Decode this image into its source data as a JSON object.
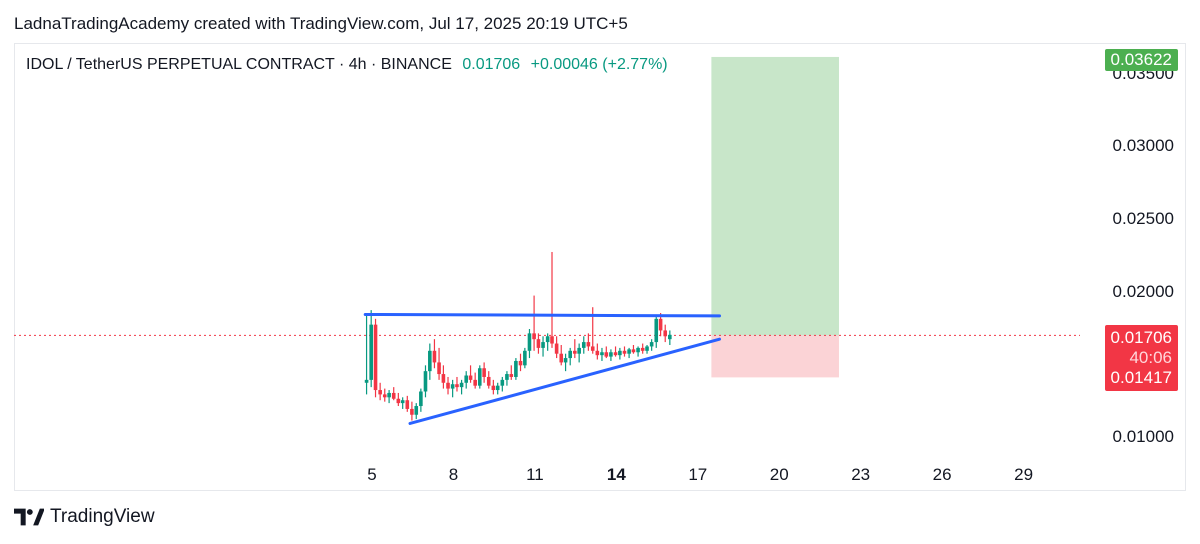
{
  "header": {
    "attribution": "LadnaTradingAcademy created with TradingView.com, Jul 17, 2025 20:19 UTC+5"
  },
  "legend": {
    "symbol": "IDOL / TetherUS PERPETUAL CONTRACT · 4h · BINANCE",
    "price": "0.01706",
    "change": "+0.00046 (+2.77%)"
  },
  "badges": {
    "target": "0.03622",
    "current_price": "0.01706",
    "countdown": "40:06",
    "stop": "0.01417"
  },
  "footer": {
    "brand": "TradingView"
  },
  "colors": {
    "up": "#089981",
    "down": "#f23645",
    "trendline": "#2962ff",
    "profit_zone": "#c8e6c9",
    "loss_zone": "#fbd3d6"
  },
  "chart_data": {
    "type": "candlestick",
    "x_ticks": [
      {
        "label": "5",
        "day": 5,
        "bold": false
      },
      {
        "label": "8",
        "day": 8,
        "bold": false
      },
      {
        "label": "11",
        "day": 11,
        "bold": false
      },
      {
        "label": "14",
        "day": 14,
        "bold": true
      },
      {
        "label": "17",
        "day": 17,
        "bold": false
      },
      {
        "label": "20",
        "day": 20,
        "bold": false
      },
      {
        "label": "23",
        "day": 23,
        "bold": false
      },
      {
        "label": "26",
        "day": 26,
        "bold": false
      },
      {
        "label": "29",
        "day": 29,
        "bold": false
      }
    ],
    "y_ticks": [
      "0.03500",
      "0.03000",
      "0.02500",
      "0.02000",
      "0.01000"
    ],
    "y_tick_values": [
      0.035,
      0.03,
      0.025,
      0.02,
      0.01
    ],
    "current_price": 0.01706,
    "candles": [
      [
        4.8,
        0.0138,
        0.0185,
        0.013,
        0.014
      ],
      [
        4.97,
        0.014,
        0.0188,
        0.0135,
        0.0178
      ],
      [
        5.13,
        0.0178,
        0.0182,
        0.0128,
        0.0133
      ],
      [
        5.3,
        0.0133,
        0.0138,
        0.0126,
        0.013
      ],
      [
        5.47,
        0.013,
        0.0134,
        0.0125,
        0.0128
      ],
      [
        5.63,
        0.0128,
        0.0133,
        0.0124,
        0.0131
      ],
      [
        5.8,
        0.0131,
        0.0135,
        0.0126,
        0.0127
      ],
      [
        5.97,
        0.0127,
        0.0131,
        0.0122,
        0.0124
      ],
      [
        6.13,
        0.0124,
        0.0128,
        0.012,
        0.0126
      ],
      [
        6.3,
        0.0126,
        0.0129,
        0.0118,
        0.012
      ],
      [
        6.47,
        0.012,
        0.0125,
        0.0112,
        0.0116
      ],
      [
        6.63,
        0.0116,
        0.0124,
        0.0113,
        0.0122
      ],
      [
        6.8,
        0.0122,
        0.0134,
        0.0118,
        0.0132
      ],
      [
        6.97,
        0.0132,
        0.015,
        0.0128,
        0.0146
      ],
      [
        7.13,
        0.0146,
        0.0165,
        0.014,
        0.016
      ],
      [
        7.3,
        0.016,
        0.0168,
        0.0148,
        0.0152
      ],
      [
        7.47,
        0.0152,
        0.0162,
        0.014,
        0.0144
      ],
      [
        7.63,
        0.0144,
        0.015,
        0.0134,
        0.0138
      ],
      [
        7.8,
        0.0138,
        0.0142,
        0.013,
        0.0134
      ],
      [
        7.97,
        0.0134,
        0.014,
        0.0128,
        0.0137
      ],
      [
        8.13,
        0.0137,
        0.0142,
        0.0132,
        0.0135
      ],
      [
        8.3,
        0.0135,
        0.014,
        0.013,
        0.0138
      ],
      [
        8.47,
        0.0138,
        0.0146,
        0.0134,
        0.0143
      ],
      [
        8.63,
        0.0143,
        0.015,
        0.0138,
        0.014
      ],
      [
        8.8,
        0.014,
        0.0145,
        0.0134,
        0.0136
      ],
      [
        8.97,
        0.0136,
        0.015,
        0.0134,
        0.0148
      ],
      [
        9.13,
        0.0148,
        0.0152,
        0.0138,
        0.0142
      ],
      [
        9.3,
        0.0142,
        0.0146,
        0.0134,
        0.0136
      ],
      [
        9.47,
        0.0136,
        0.014,
        0.013,
        0.0133
      ],
      [
        9.63,
        0.0133,
        0.0138,
        0.013,
        0.0136
      ],
      [
        9.8,
        0.0136,
        0.0142,
        0.0132,
        0.014
      ],
      [
        9.97,
        0.014,
        0.0146,
        0.0136,
        0.0144
      ],
      [
        10.13,
        0.0144,
        0.015,
        0.014,
        0.0142
      ],
      [
        10.3,
        0.0142,
        0.0155,
        0.014,
        0.0153
      ],
      [
        10.47,
        0.0153,
        0.0158,
        0.0146,
        0.015
      ],
      [
        10.63,
        0.015,
        0.0162,
        0.0148,
        0.016
      ],
      [
        10.8,
        0.016,
        0.0175,
        0.0155,
        0.0172
      ],
      [
        10.97,
        0.0172,
        0.0198,
        0.016,
        0.0168
      ],
      [
        11.13,
        0.0168,
        0.0172,
        0.0158,
        0.0162
      ],
      [
        11.3,
        0.0162,
        0.017,
        0.0156,
        0.0166
      ],
      [
        11.47,
        0.0166,
        0.0172,
        0.016,
        0.017
      ],
      [
        11.63,
        0.017,
        0.0228,
        0.0162,
        0.0165
      ],
      [
        11.8,
        0.0165,
        0.017,
        0.0155,
        0.0158
      ],
      [
        11.97,
        0.0158,
        0.0164,
        0.015,
        0.0152
      ],
      [
        12.13,
        0.0152,
        0.0158,
        0.0146,
        0.0155
      ],
      [
        12.3,
        0.0155,
        0.0162,
        0.015,
        0.016
      ],
      [
        12.47,
        0.016,
        0.0168,
        0.0155,
        0.0158
      ],
      [
        12.63,
        0.0158,
        0.0165,
        0.0152,
        0.0162
      ],
      [
        12.8,
        0.0162,
        0.017,
        0.0158,
        0.0166
      ],
      [
        12.97,
        0.0166,
        0.0172,
        0.016,
        0.0163
      ],
      [
        13.13,
        0.0163,
        0.019,
        0.0158,
        0.016
      ],
      [
        13.3,
        0.016,
        0.0165,
        0.0154,
        0.0157
      ],
      [
        13.47,
        0.0157,
        0.0162,
        0.0153,
        0.0159
      ],
      [
        13.63,
        0.0159,
        0.0163,
        0.0155,
        0.0156
      ],
      [
        13.8,
        0.0156,
        0.0161,
        0.0153,
        0.0159
      ],
      [
        13.97,
        0.0159,
        0.0163,
        0.0156,
        0.0157
      ],
      [
        14.13,
        0.0157,
        0.0162,
        0.0154,
        0.016
      ],
      [
        14.3,
        0.016,
        0.0163,
        0.0156,
        0.0158
      ],
      [
        14.47,
        0.0158,
        0.0162,
        0.0155,
        0.0161
      ],
      [
        14.63,
        0.0161,
        0.0164,
        0.0158,
        0.0159
      ],
      [
        14.8,
        0.0159,
        0.0163,
        0.0156,
        0.0162
      ],
      [
        14.97,
        0.0162,
        0.0165,
        0.0158,
        0.016
      ],
      [
        15.13,
        0.016,
        0.0164,
        0.0158,
        0.0163
      ],
      [
        15.3,
        0.0163,
        0.0168,
        0.016,
        0.0166
      ],
      [
        15.47,
        0.0166,
        0.0185,
        0.0162,
        0.0182
      ],
      [
        15.63,
        0.0182,
        0.0186,
        0.017,
        0.0174
      ],
      [
        15.8,
        0.0174,
        0.0178,
        0.0166,
        0.017
      ],
      [
        15.97,
        0.0168,
        0.0174,
        0.0164,
        0.0171
      ]
    ],
    "trendlines": [
      {
        "name": "resistance",
        "points": [
          [
            4.75,
            0.0185
          ],
          [
            17.8,
            0.0184
          ]
        ]
      },
      {
        "name": "support",
        "points": [
          [
            6.4,
            0.011
          ],
          [
            17.8,
            0.0168
          ]
        ]
      }
    ],
    "position": {
      "x_start": 17.5,
      "x_end": 22.2,
      "entry": 0.01706,
      "target": 0.03622,
      "stop": 0.01417
    }
  }
}
